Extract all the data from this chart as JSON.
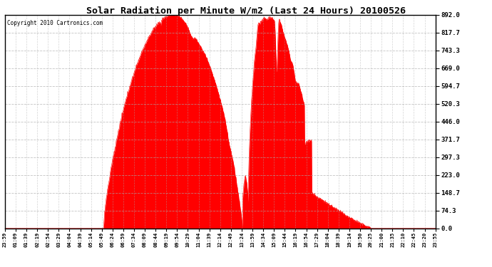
{
  "title": "Solar Radiation per Minute W/m2 (Last 24 Hours) 20100526",
  "copyright": "Copyright 2010 Cartronics.com",
  "bg_color": "#ffffff",
  "plot_bg_color": "#ffffff",
  "fill_color": "#ff0000",
  "line_color": "#ff0000",
  "dashed_line_color": "#ff0000",
  "grid_color": "#aaaaaa",
  "yticks": [
    0.0,
    74.3,
    148.7,
    223.0,
    297.3,
    371.7,
    446.0,
    520.3,
    594.7,
    669.0,
    743.3,
    817.7,
    892.0
  ],
  "ymax": 892.0,
  "ymin": 0.0,
  "xtick_labels": [
    "23:59",
    "01:09",
    "01:39",
    "02:19",
    "02:54",
    "03:29",
    "04:04",
    "04:39",
    "05:14",
    "05:49",
    "06:24",
    "06:59",
    "07:34",
    "08:09",
    "08:44",
    "09:19",
    "09:54",
    "10:29",
    "11:04",
    "11:39",
    "12:14",
    "12:49",
    "13:24",
    "13:59",
    "14:34",
    "15:09",
    "15:44",
    "16:19",
    "16:54",
    "17:29",
    "18:04",
    "18:39",
    "19:14",
    "19:50",
    "20:25",
    "21:00",
    "21:35",
    "22:10",
    "22:45",
    "23:20",
    "23:55"
  ]
}
